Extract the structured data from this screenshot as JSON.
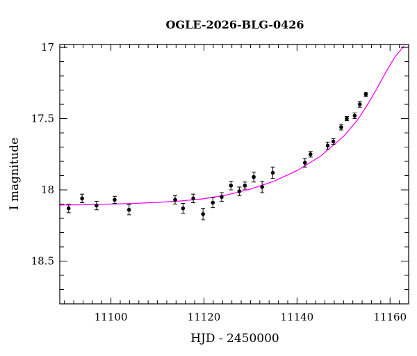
{
  "chart_data": {
    "type": "scatter",
    "title": "OGLE-2026-BLG-0426",
    "xlabel": "HJD - 2450000",
    "ylabel": "I magnitude",
    "xlim": [
      11089,
      11164
    ],
    "ylim": [
      18.8,
      16.98
    ],
    "y_inverted": true,
    "grid": false,
    "x_ticks": [
      11100,
      11120,
      11140,
      11160
    ],
    "x_tick_labels": [
      "11100",
      "11120",
      "11140",
      "11160"
    ],
    "y_ticks": [
      17,
      17.5,
      18,
      18.5
    ],
    "y_tick_labels": [
      "17",
      "17.5",
      "18",
      "18.5"
    ],
    "series": [
      {
        "type": "errorbar",
        "color": "#000000",
        "points": [
          {
            "x": 11090.9,
            "y": 18.13,
            "err": 0.03
          },
          {
            "x": 11093.8,
            "y": 18.06,
            "err": 0.03
          },
          {
            "x": 11096.9,
            "y": 18.11,
            "err": 0.03
          },
          {
            "x": 11100.8,
            "y": 18.07,
            "err": 0.025
          },
          {
            "x": 11103.9,
            "y": 18.14,
            "err": 0.035
          },
          {
            "x": 11113.8,
            "y": 18.07,
            "err": 0.03
          },
          {
            "x": 11115.5,
            "y": 18.13,
            "err": 0.035
          },
          {
            "x": 11117.7,
            "y": 18.06,
            "err": 0.03
          },
          {
            "x": 11119.8,
            "y": 18.17,
            "err": 0.04
          },
          {
            "x": 11121.9,
            "y": 18.09,
            "err": 0.035
          },
          {
            "x": 11123.8,
            "y": 18.05,
            "err": 0.03
          },
          {
            "x": 11125.8,
            "y": 17.97,
            "err": 0.03
          },
          {
            "x": 11127.6,
            "y": 18.01,
            "err": 0.03
          },
          {
            "x": 11128.8,
            "y": 17.97,
            "err": 0.025
          },
          {
            "x": 11130.7,
            "y": 17.91,
            "err": 0.035
          },
          {
            "x": 11132.5,
            "y": 17.98,
            "err": 0.04
          },
          {
            "x": 11134.8,
            "y": 17.88,
            "err": 0.04
          },
          {
            "x": 11141.7,
            "y": 17.81,
            "err": 0.03
          },
          {
            "x": 11142.9,
            "y": 17.75,
            "err": 0.02
          },
          {
            "x": 11146.6,
            "y": 17.69,
            "err": 0.025
          },
          {
            "x": 11147.8,
            "y": 17.66,
            "err": 0.02
          },
          {
            "x": 11149.5,
            "y": 17.56,
            "err": 0.02
          },
          {
            "x": 11150.7,
            "y": 17.5,
            "err": 0.015
          },
          {
            "x": 11152.4,
            "y": 17.48,
            "err": 0.02
          },
          {
            "x": 11153.5,
            "y": 17.4,
            "err": 0.02
          },
          {
            "x": 11154.8,
            "y": 17.33,
            "err": 0.015
          }
        ]
      },
      {
        "type": "line",
        "color": "#ff00ff",
        "points": [
          {
            "x": 11089,
            "y": 18.106
          },
          {
            "x": 11095,
            "y": 18.104
          },
          {
            "x": 11100,
            "y": 18.1
          },
          {
            "x": 11105,
            "y": 18.095
          },
          {
            "x": 11110,
            "y": 18.088
          },
          {
            "x": 11115,
            "y": 18.078
          },
          {
            "x": 11120,
            "y": 18.062
          },
          {
            "x": 11125,
            "y": 18.035
          },
          {
            "x": 11130,
            "y": 17.995
          },
          {
            "x": 11135,
            "y": 17.94
          },
          {
            "x": 11140,
            "y": 17.865
          },
          {
            "x": 11145,
            "y": 17.765
          },
          {
            "x": 11150,
            "y": 17.625
          },
          {
            "x": 11153,
            "y": 17.51
          },
          {
            "x": 11155,
            "y": 17.41
          },
          {
            "x": 11157,
            "y": 17.3
          },
          {
            "x": 11159,
            "y": 17.18
          },
          {
            "x": 11161,
            "y": 17.07
          },
          {
            "x": 11163,
            "y": 16.99
          }
        ]
      }
    ]
  }
}
